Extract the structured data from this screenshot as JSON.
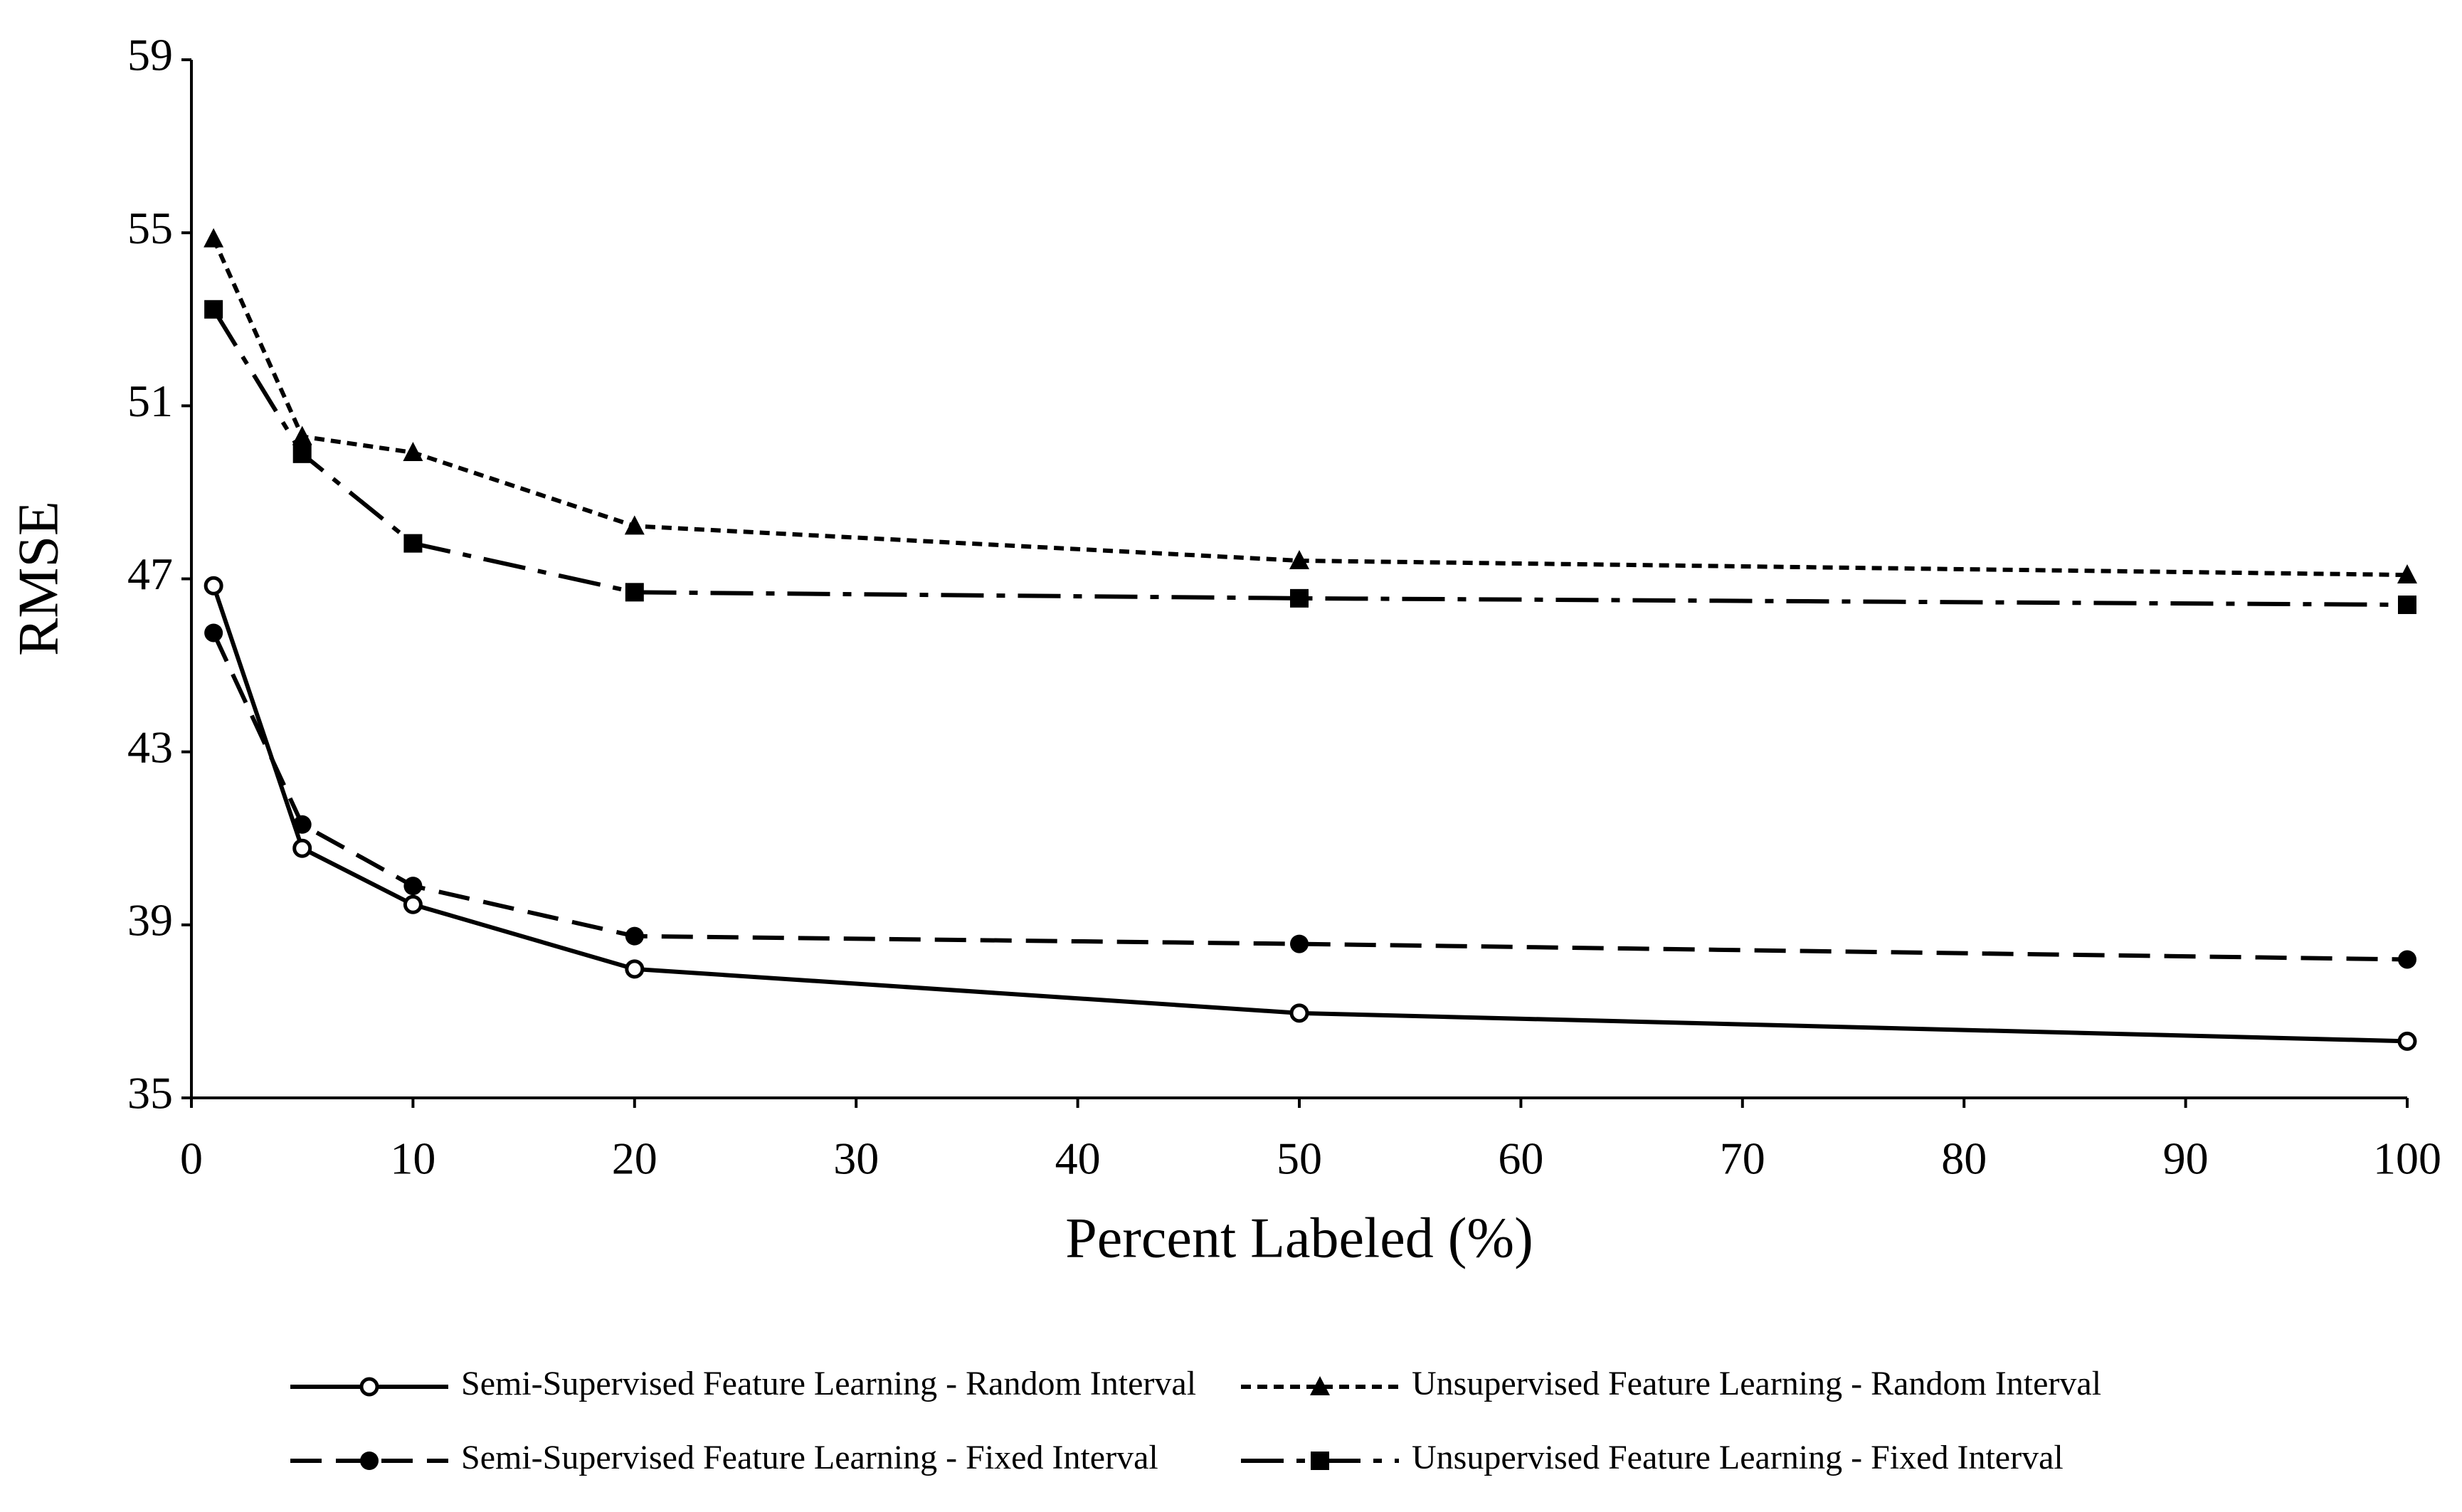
{
  "chart_data": {
    "type": "line",
    "x_label": "Percent Labeled (%)",
    "y_label": "RMSE",
    "x": [
      1,
      5,
      10,
      20,
      50,
      100
    ],
    "xlim": [
      0,
      100
    ],
    "xticks": [
      0,
      10,
      20,
      30,
      40,
      50,
      60,
      70,
      80,
      90,
      100
    ],
    "ylim": [
      35,
      59
    ],
    "yticks": [
      35,
      39,
      43,
      47,
      51,
      55,
      59
    ],
    "grid": false,
    "legend": "bottom",
    "series": [
      {
        "name": "Semi-Supervised Feature Learning - Random Interval",
        "color": "#000000",
        "dash": "solid",
        "marker": "open-circle",
        "values": [
          46.84,
          40.77,
          39.47,
          37.98,
          36.96,
          36.31
        ]
      },
      {
        "name": "Unsupervised Feature Learning - Random Interval",
        "color": "#000000",
        "dash": "dotted",
        "marker": "triangle",
        "values": [
          54.86,
          50.29,
          49.92,
          48.22,
          47.42,
          47.09
        ]
      },
      {
        "name": "Semi-Supervised Feature Learning - Fixed Interval",
        "color": "#000000",
        "dash": "dashed",
        "marker": "filled-circle",
        "values": [
          45.75,
          41.32,
          39.9,
          38.74,
          38.56,
          38.2
        ]
      },
      {
        "name": "Unsupervised Feature Learning - Fixed Interval",
        "color": "#000000",
        "dash": "dash-dot",
        "marker": "square",
        "values": [
          53.23,
          49.89,
          47.82,
          46.69,
          46.55,
          46.4
        ]
      }
    ]
  }
}
